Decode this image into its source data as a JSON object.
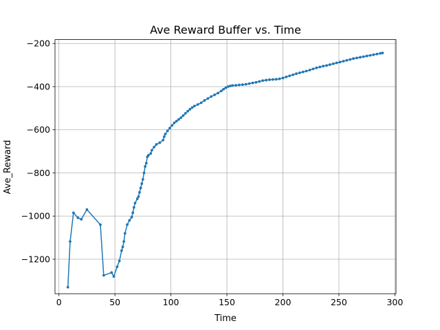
{
  "chart_data": {
    "type": "line",
    "title": "Ave Reward Buffer vs. Time",
    "xlabel": "Time",
    "ylabel": "Ave_Reward",
    "xlim": [
      -3.5,
      301
    ],
    "ylim": [
      -1360,
      -182
    ],
    "x_ticks": [
      0,
      50,
      100,
      150,
      200,
      250,
      300
    ],
    "y_ticks": [
      -1200,
      -1000,
      -800,
      -600,
      -400,
      -200
    ],
    "x_tick_labels": [
      "0",
      "50",
      "100",
      "150",
      "200",
      "250",
      "300"
    ],
    "y_tick_labels": [
      "−1200",
      "−1000",
      "−800",
      "−600",
      "−400",
      "−200"
    ],
    "grid": true,
    "series": [
      {
        "color": "#1f77b4",
        "marker": "circle",
        "points": [
          [
            8,
            -1330
          ],
          [
            10,
            -1118
          ],
          [
            13,
            -985
          ],
          [
            17,
            -1008
          ],
          [
            20,
            -1015
          ],
          [
            25,
            -970
          ],
          [
            37,
            -1040
          ],
          [
            40,
            -1275
          ],
          [
            47,
            -1262
          ],
          [
            49,
            -1280
          ],
          [
            52,
            -1235
          ],
          [
            54,
            -1208
          ],
          [
            56,
            -1160
          ],
          [
            57,
            -1143
          ],
          [
            58,
            -1118
          ],
          [
            59,
            -1080
          ],
          [
            61,
            -1040
          ],
          [
            63,
            -1020
          ],
          [
            65,
            -1005
          ],
          [
            66,
            -985
          ],
          [
            67,
            -960
          ],
          [
            68,
            -940
          ],
          [
            70,
            -920
          ],
          [
            71,
            -910
          ],
          [
            72,
            -890
          ],
          [
            73,
            -870
          ],
          [
            74,
            -850
          ],
          [
            75,
            -830
          ],
          [
            76,
            -800
          ],
          [
            77,
            -770
          ],
          [
            78,
            -755
          ],
          [
            79,
            -725
          ],
          [
            80,
            -718
          ],
          [
            82,
            -710
          ],
          [
            83,
            -695
          ],
          [
            85,
            -680
          ],
          [
            87,
            -668
          ],
          [
            90,
            -660
          ],
          [
            93,
            -648
          ],
          [
            94,
            -632
          ],
          [
            95,
            -620
          ],
          [
            97,
            -605
          ],
          [
            99,
            -592
          ],
          [
            101,
            -580
          ],
          [
            103,
            -568
          ],
          [
            105,
            -560
          ],
          [
            107,
            -552
          ],
          [
            109,
            -544
          ],
          [
            111,
            -534
          ],
          [
            113,
            -524
          ],
          [
            115,
            -514
          ],
          [
            117,
            -505
          ],
          [
            119,
            -497
          ],
          [
            121,
            -490
          ],
          [
            124,
            -483
          ],
          [
            127,
            -475
          ],
          [
            130,
            -464
          ],
          [
            133,
            -455
          ],
          [
            136,
            -446
          ],
          [
            139,
            -438
          ],
          [
            142,
            -430
          ],
          [
            145,
            -420
          ],
          [
            147,
            -412
          ],
          [
            149,
            -405
          ],
          [
            151,
            -400
          ],
          [
            153,
            -397
          ],
          [
            155,
            -395
          ],
          [
            158,
            -394
          ],
          [
            161,
            -392
          ],
          [
            164,
            -391
          ],
          [
            167,
            -389
          ],
          [
            170,
            -386
          ],
          [
            173,
            -383
          ],
          [
            176,
            -380
          ],
          [
            179,
            -376
          ],
          [
            182,
            -372
          ],
          [
            185,
            -370
          ],
          [
            188,
            -368
          ],
          [
            191,
            -367
          ],
          [
            194,
            -366
          ],
          [
            197,
            -364
          ],
          [
            200,
            -360
          ],
          [
            203,
            -355
          ],
          [
            206,
            -350
          ],
          [
            209,
            -345
          ],
          [
            212,
            -340
          ],
          [
            215,
            -336
          ],
          [
            218,
            -332
          ],
          [
            221,
            -328
          ],
          [
            224,
            -323
          ],
          [
            227,
            -318
          ],
          [
            230,
            -313
          ],
          [
            233,
            -309
          ],
          [
            236,
            -305
          ],
          [
            239,
            -302
          ],
          [
            242,
            -298
          ],
          [
            245,
            -294
          ],
          [
            248,
            -290
          ],
          [
            251,
            -286
          ],
          [
            254,
            -282
          ],
          [
            257,
            -278
          ],
          [
            260,
            -274
          ],
          [
            263,
            -270
          ],
          [
            266,
            -267
          ],
          [
            269,
            -264
          ],
          [
            272,
            -261
          ],
          [
            275,
            -258
          ],
          [
            278,
            -255
          ],
          [
            281,
            -252
          ],
          [
            284,
            -249
          ],
          [
            287,
            -246
          ],
          [
            289,
            -244
          ]
        ]
      }
    ]
  }
}
